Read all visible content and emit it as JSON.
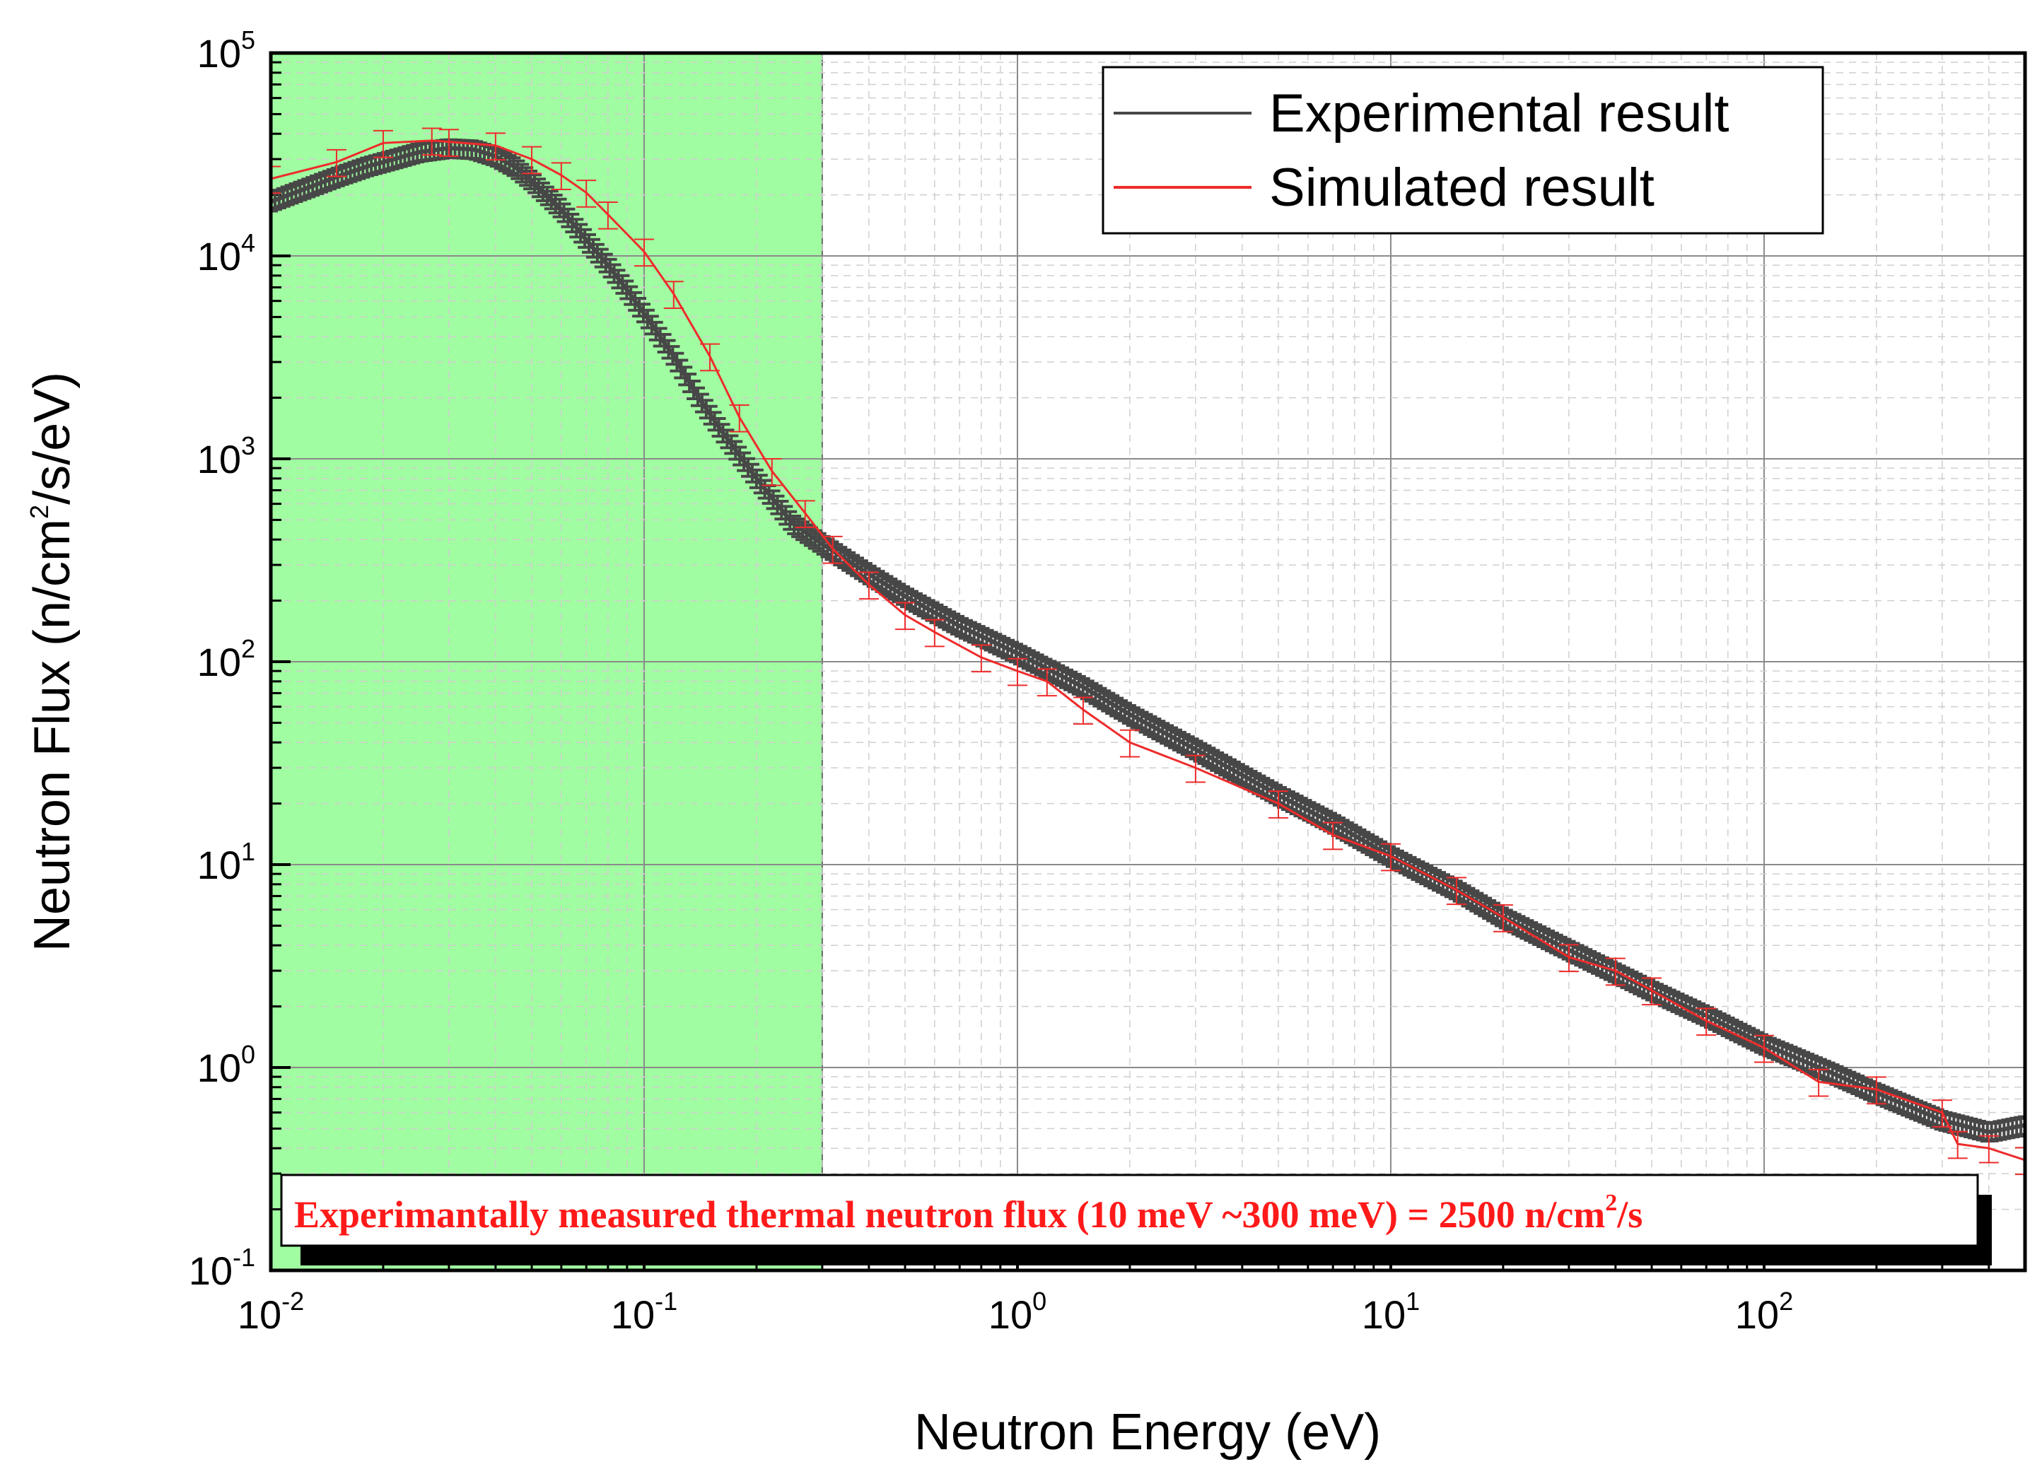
{
  "chart_data": {
    "type": "line",
    "title": "",
    "xlabel": "Neutron Energy (eV)",
    "ylabel_parts": [
      "Neutron Flux (n/cm",
      "2",
      "/s/eV)"
    ],
    "xscale": "log",
    "yscale": "log",
    "xlim": [
      0.01,
      500
    ],
    "ylim": [
      0.1,
      100000
    ],
    "grid": true,
    "x_ticks": [
      {
        "base": "10",
        "exp": "-2"
      },
      {
        "base": "10",
        "exp": "-1"
      },
      {
        "base": "10",
        "exp": "0"
      },
      {
        "base": "10",
        "exp": "1"
      },
      {
        "base": "10",
        "exp": "2"
      }
    ],
    "y_ticks": [
      {
        "base": "10",
        "exp": "-1"
      },
      {
        "base": "10",
        "exp": "0"
      },
      {
        "base": "10",
        "exp": "1"
      },
      {
        "base": "10",
        "exp": "2"
      },
      {
        "base": "10",
        "exp": "3"
      },
      {
        "base": "10",
        "exp": "4"
      },
      {
        "base": "10",
        "exp": "5"
      }
    ],
    "shaded_region": {
      "x_from": 0.01,
      "x_to": 0.3,
      "color": "#a1fda1"
    },
    "legend": {
      "position": "top-right",
      "entries": [
        "Experimental result",
        "Simulated result"
      ]
    },
    "series": [
      {
        "name": "Experimental result",
        "color": "#474747",
        "relative_error": 0.1,
        "points": [
          [
            0.01,
            18500
          ],
          [
            0.012,
            21000
          ],
          [
            0.015,
            24500
          ],
          [
            0.018,
            27500
          ],
          [
            0.02,
            29000
          ],
          [
            0.025,
            32500
          ],
          [
            0.03,
            34000
          ],
          [
            0.035,
            33500
          ],
          [
            0.04,
            31000
          ],
          [
            0.045,
            27500
          ],
          [
            0.05,
            23500
          ],
          [
            0.06,
            17000
          ],
          [
            0.07,
            12000
          ],
          [
            0.08,
            9000
          ],
          [
            0.09,
            6800
          ],
          [
            0.1,
            5200
          ],
          [
            0.12,
            3200
          ],
          [
            0.14,
            2000
          ],
          [
            0.16,
            1400
          ],
          [
            0.2,
            800
          ],
          [
            0.25,
            480
          ],
          [
            0.3,
            380
          ],
          [
            0.4,
            270
          ],
          [
            0.5,
            210
          ],
          [
            0.7,
            150
          ],
          [
            1,
            110
          ],
          [
            1.5,
            75
          ],
          [
            2,
            55
          ],
          [
            3,
            37
          ],
          [
            5,
            22
          ],
          [
            7,
            16
          ],
          [
            10,
            11
          ],
          [
            15,
            7.5
          ],
          [
            20,
            5.5
          ],
          [
            30,
            3.8
          ],
          [
            50,
            2.4
          ],
          [
            70,
            1.8
          ],
          [
            100,
            1.3
          ],
          [
            150,
            0.95
          ],
          [
            200,
            0.75
          ],
          [
            300,
            0.55
          ],
          [
            400,
            0.48
          ],
          [
            500,
            0.52
          ]
        ]
      },
      {
        "name": "Simulated result",
        "color": "#ee2b2b",
        "relative_error": 0.15,
        "points": [
          [
            0.01,
            24000
          ],
          [
            0.015,
            29000
          ],
          [
            0.02,
            36000
          ],
          [
            0.027,
            37000
          ],
          [
            0.03,
            36500
          ],
          [
            0.04,
            35000
          ],
          [
            0.05,
            30000
          ],
          [
            0.06,
            25000
          ],
          [
            0.07,
            20500
          ],
          [
            0.08,
            16000
          ],
          [
            0.1,
            10500
          ],
          [
            0.12,
            6500
          ],
          [
            0.15,
            3200
          ],
          [
            0.18,
            1600
          ],
          [
            0.22,
            870
          ],
          [
            0.27,
            540
          ],
          [
            0.32,
            360
          ],
          [
            0.4,
            240
          ],
          [
            0.5,
            170
          ],
          [
            0.6,
            140
          ],
          [
            0.8,
            105
          ],
          [
            1,
            90
          ],
          [
            1.2,
            80
          ],
          [
            1.5,
            58
          ],
          [
            2,
            40
          ],
          [
            3,
            30
          ],
          [
            5,
            20
          ],
          [
            7,
            14
          ],
          [
            10,
            11
          ],
          [
            15,
            7.5
          ],
          [
            20,
            5.5
          ],
          [
            30,
            3.5
          ],
          [
            40,
            3.0
          ],
          [
            50,
            2.4
          ],
          [
            70,
            1.7
          ],
          [
            100,
            1.25
          ],
          [
            140,
            0.85
          ],
          [
            200,
            0.78
          ],
          [
            300,
            0.6
          ],
          [
            330,
            0.42
          ],
          [
            400,
            0.4
          ],
          [
            500,
            0.35
          ]
        ]
      }
    ],
    "annotation": {
      "text": "Experimantally measured thermal neutron flux (10 meV ~300 meV) = 2500 n/cm",
      "sup": "2",
      "tail": "/s"
    }
  }
}
